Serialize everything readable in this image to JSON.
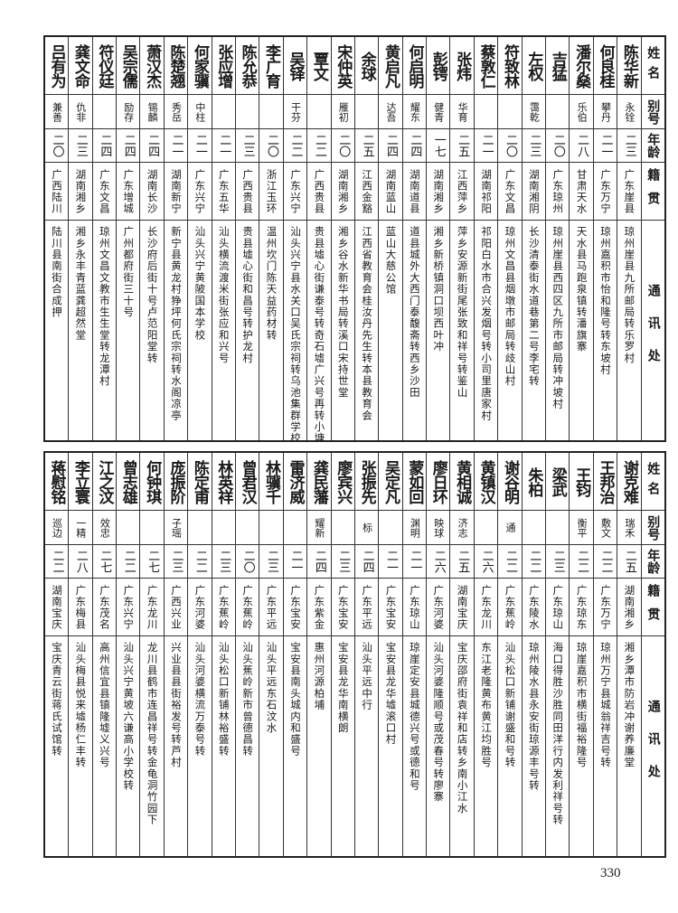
{
  "header": {
    "name": "姓名",
    "alias": "别号",
    "age": "年龄",
    "origin": "籍贯",
    "address": "通讯处"
  },
  "top_table": [
    {
      "name": "陈华新",
      "alias": "永铨",
      "age": "二三",
      "origin": "广东崖县",
      "address": "琼州崖县九所邮局转乐罗村"
    },
    {
      "name": "何良桂",
      "alias": "攀丹",
      "age": "二一",
      "origin": "广东万宁",
      "address": "琼州嘉积市怡和隆号转东坡村"
    },
    {
      "name": "潘尔燊",
      "alias": "乐伯",
      "age": "二八",
      "origin": "甘肃天水",
      "address": "天水县马跑泉镇转潘旗寨"
    },
    {
      "name": "吉猛",
      "alias": "",
      "age": "二〇",
      "origin": "广东琼州",
      "address": "琼州崖县西四区九所市邮局转冲坡村"
    },
    {
      "name": "左权",
      "alias": "霭乾",
      "age": "二三",
      "origin": "湖南湘阴",
      "address": "长沙清泰街水道巷第二号李宅转"
    },
    {
      "name": "符致林",
      "alias": "",
      "age": "二〇",
      "origin": "广东文昌",
      "address": "琼州文昌县烟墩市邮局转歧山村"
    },
    {
      "name": "蔡敦仁",
      "alias": "",
      "age": "二一",
      "origin": "湖南祁阳",
      "address": "祁阳白水市合兴发烟号转小司里唐家村"
    },
    {
      "name": "张炜",
      "alias": "华育",
      "age": "二五",
      "origin": "江西萍乡",
      "address": "萍乡安源新街尾张致和祥号转鉴山"
    },
    {
      "name": "彭锷",
      "alias": "健青",
      "age": "一七",
      "origin": "湖南湘乡",
      "address": "湘乡新桥镇洞口坝西叶冲"
    },
    {
      "name": "何启明",
      "alias": "耀东",
      "age": "二四",
      "origin": "湖南道县",
      "address": "道县城外大西门泰馥斋转西乡沙田"
    },
    {
      "name": "黄启凡",
      "alias": "达吾",
      "age": "二四",
      "origin": "湖南蓝山",
      "address": "蓝山大慈公馆"
    },
    {
      "name": "余球",
      "alias": "",
      "age": "二五",
      "origin": "江西金豁",
      "address": "江西省教育会桂汝丹先生转本县教育会"
    },
    {
      "name": "宋仲英",
      "alias": "雁初",
      "age": "二〇",
      "origin": "湖南湘乡",
      "address": "湘乡谷水新华书局转溪口宋持世堂"
    },
    {
      "name": "覃文",
      "alias": "",
      "age": "二二",
      "origin": "广西贵县",
      "address": "贵县墟心街谦泰号转奇石墟广兴号再转小塘"
    },
    {
      "name": "吴铎",
      "alias": "干芬",
      "age": "二二",
      "origin": "广东兴宁",
      "address": "汕头兴宁县水关口吴氏宗祠转乌池集群学校"
    },
    {
      "name": "李广育",
      "alias": "",
      "age": "二〇",
      "origin": "浙江玉环",
      "address": "温州坎门陈天益药材转"
    },
    {
      "name": "陈允恭",
      "alias": "",
      "age": "二三",
      "origin": "广西贵县",
      "address": "贵县墟心街和昌号转护龙村"
    },
    {
      "name": "张应增",
      "alias": "",
      "age": "二一",
      "origin": "广东五华",
      "address": "汕头横流渡米街张应和兴号"
    },
    {
      "name": "何家骥",
      "alias": "中柱",
      "age": "二一",
      "origin": "广东兴宁",
      "address": "汕头兴宁黄陂国本学校"
    },
    {
      "name": "陈楚翘",
      "alias": "秀岳",
      "age": "二一",
      "origin": "湖南新宁",
      "address": "新宁县黄龙村狰坪何氏宗祠转水阁凉亭"
    },
    {
      "name": "萧汉杰",
      "alias": "锡麟",
      "age": "二四",
      "origin": "湖南长沙",
      "address": "长沙府后街十号卢范阳堂转"
    },
    {
      "name": "吴宗儒",
      "alias": "励存",
      "age": "二四",
      "origin": "广东增城",
      "address": "广州都府街三十号"
    },
    {
      "name": "符仪廷",
      "alias": "",
      "age": "二四",
      "origin": "广东文昌",
      "address": "琼州文昌文教市生生堂转龙潭村"
    },
    {
      "name": "龚文命",
      "alias": "仇非",
      "age": "二三",
      "origin": "湖南湘乡",
      "address": "湘乡永丰青蓝龚超然堂"
    },
    {
      "name": "吕有为",
      "alias": "兼善",
      "age": "二〇",
      "origin": "广西陆川",
      "address": "陆川县南街合成押"
    }
  ],
  "bottom_table": [
    {
      "name": "谢克难",
      "alias": "瑞禾",
      "age": "二五",
      "origin": "湖南湘乡",
      "address": "湘乡潭市防岩冲谢养廉堂"
    },
    {
      "name": "王邦治",
      "alias": "敷文",
      "age": "二二",
      "origin": "广东万宁",
      "address": "琼州万宁县城翁祥吉号转"
    },
    {
      "name": "王钧",
      "alias": "衡平",
      "age": "二二",
      "origin": "广东琼东",
      "address": "琼崖嘉积市横街福裕隆号"
    },
    {
      "name": "梁武",
      "alias": "",
      "age": "二三",
      "origin": "广东琼山",
      "address": "海口得胜沙胜同田洋行内发利祥号转"
    },
    {
      "name": "朱柏",
      "alias": "",
      "age": "二二",
      "origin": "广东陵水",
      "address": "琼州陵水县永安街琼源丰号转"
    },
    {
      "name": "谢谷明",
      "alias": "通",
      "age": "二二",
      "origin": "广东蕉岭",
      "address": "汕头松口新铺谢盛和号转"
    },
    {
      "name": "黄镇汉",
      "alias": "",
      "age": "二六",
      "origin": "广东龙川",
      "address": "东江老隆黄布黄江均胜号"
    },
    {
      "name": "黄相诚",
      "alias": "济志",
      "age": "二五",
      "origin": "湖南宝庆",
      "address": "宝庆邵府街袁祥和店转乡南小江水"
    },
    {
      "name": "廖日环",
      "alias": "映球",
      "age": "二六",
      "origin": "广东河婆",
      "address": "汕头河婆隆顺号或茂春号转廖寨"
    },
    {
      "name": "蒙如回",
      "alias": "渊明",
      "age": "二一",
      "origin": "广东琼山",
      "address": "琼崖定安县城德兴号或德和号"
    },
    {
      "name": "吴定凡",
      "alias": "",
      "age": "二一",
      "origin": "广东宝安",
      "address": "宝安县龙华墟滚口村"
    },
    {
      "name": "张振先",
      "alias": "标",
      "age": "二四",
      "origin": "广东平远",
      "address": "汕头平远中行"
    },
    {
      "name": "廖宾兴",
      "alias": "",
      "age": "二三",
      "origin": "广东宝安",
      "address": "宝安县龙华南横朗"
    },
    {
      "name": "龚民藩",
      "alias": "耀新",
      "age": "二四",
      "origin": "广东紫金",
      "address": "惠州河源柏埔"
    },
    {
      "name": "雷济威",
      "alias": "",
      "age": "二一",
      "origin": "广东宝安",
      "address": "宝安县南头城内和盛号"
    },
    {
      "name": "林骥千",
      "alias": "",
      "age": "二三",
      "origin": "广东平远",
      "address": "汕头平远东石汶水"
    },
    {
      "name": "曾君汉",
      "alias": "",
      "age": "二〇",
      "origin": "广东蕉岭",
      "address": "汕头蕉岭新市曾德昌转"
    },
    {
      "name": "林英祥",
      "alias": "",
      "age": "二三",
      "origin": "广东蕉岭",
      "address": "汕头松口新铺林裕盛转"
    },
    {
      "name": "陈定甫",
      "alias": "",
      "age": "二二",
      "origin": "广东河婆",
      "address": "汕头河婆横流万泰号转"
    },
    {
      "name": "庞振阶",
      "alias": "子瑶",
      "age": "二三",
      "origin": "广西兴业",
      "address": "兴业县县街裕发号转芦村"
    },
    {
      "name": "何钟琪",
      "alias": "",
      "age": "二七",
      "origin": "广东龙川",
      "address": "龙川县鹤市连昌祥号转金龟洞竹园下"
    },
    {
      "name": "曾志雄",
      "alias": "",
      "age": "二二",
      "origin": "广东兴宁",
      "address": "汕头兴宁黄坡六谦高小学校转"
    },
    {
      "name": "江之汶",
      "alias": "效忠",
      "age": "二七",
      "origin": "广东茂名",
      "address": "高州信宜县镇隆墟义兴号"
    },
    {
      "name": "李立寰",
      "alias": "一精",
      "age": "二八",
      "origin": "广东梅县",
      "address": "汕头梅县悦来墟杨仁丰转"
    },
    {
      "name": "蒋慰铭",
      "alias": "巡边",
      "age": "二二",
      "origin": "湖南宝庆",
      "address": "宝庆青云街蒋氏试馆转"
    }
  ],
  "page_number": "330"
}
